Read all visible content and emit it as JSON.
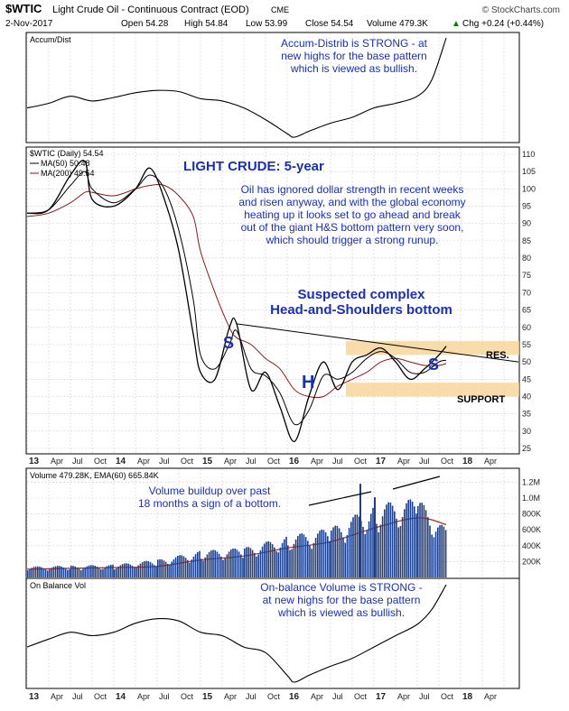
{
  "header": {
    "symbol": "$WTIC",
    "name": "Light Crude Oil - Continuous Contract (EOD)",
    "exchange": "CME",
    "date": "2-Nov-2017",
    "open": "Open 54.28",
    "high": "High 54.84",
    "low": "Low 53.99",
    "close": "Close 54.54",
    "volume": "Volume 479.3K",
    "change": "Chg +0.24 (+0.44%)",
    "change_arrow": "▲",
    "source": "© StockCharts.com"
  },
  "colors": {
    "price": "#000000",
    "ma50": "#000000",
    "ma200": "#8b1a1a",
    "volume_bar": "#1e3f8a",
    "volume_ema": "#b22222",
    "annotation_text": "#1a2fb4",
    "band_fill": "#f5d08f",
    "grid": "#cfcfcf"
  },
  "x_axis_labels": [
    "13",
    "Apr",
    "Jul",
    "Oct",
    "14",
    "Apr",
    "Jul",
    "Oct",
    "15",
    "Apr",
    "Jul",
    "Oct",
    "16",
    "Apr",
    "Jul",
    "Oct",
    "17",
    "Apr",
    "Jul",
    "Oct",
    "18",
    "Apr"
  ],
  "panels": {
    "accum": {
      "label": "Accum/Dist",
      "annotation": [
        "Accum-Distrib is STRONG - at",
        "new highs for the base pattern",
        "which is viewed as bullish."
      ]
    },
    "price": {
      "legend_title": "$WTIC (Daily) 54.54",
      "legend_ma50": "MA(50) 50.48",
      "legend_ma200": "MA(200) 49.54",
      "title": "LIGHT CRUDE: 5-year",
      "commentary": [
        "Oil has ignored dollar strength in recent weeks",
        "and risen anyway, and with the global economy",
        "heating up it looks set to go ahead and break",
        "out of the giant H&S bottom pattern very soon,",
        "which should trigger a strong runup."
      ],
      "pattern_label": [
        "Suspected complex",
        "Head-and-Shoulders bottom"
      ],
      "marker_s_left": "S",
      "marker_h": "H",
      "marker_s_right": "S",
      "res_label": "RES.",
      "support_label": "SUPPORT"
    },
    "volume": {
      "legend": "Volume 479.28K, EMA(60) 665.84K",
      "annotation": [
        "Volume buildup over past",
        "18 months a sign of a bottom."
      ]
    },
    "obv": {
      "label": "On Balance Vol",
      "annotation": [
        "On-balance Volume is STRONG -",
        "at new highs for the base pattern",
        "which is viewed as bullish."
      ]
    }
  },
  "chart_data": [
    {
      "type": "line",
      "name": "Accum/Dist",
      "x": [
        "2013-01",
        "2013-04",
        "2013-07",
        "2013-10",
        "2014-01",
        "2014-04",
        "2014-07",
        "2014-10",
        "2015-01",
        "2015-04",
        "2015-07",
        "2015-10",
        "2016-01",
        "2016-02",
        "2016-04",
        "2016-07",
        "2016-10",
        "2017-01",
        "2017-04",
        "2017-07",
        "2017-09",
        "2017-11"
      ],
      "series": [
        {
          "name": "Accum/Dist",
          "values": [
            40,
            44,
            50,
            46,
            49,
            53,
            55,
            54,
            48,
            46,
            40,
            30,
            18,
            15,
            20,
            27,
            32,
            40,
            44,
            50,
            64,
            100
          ]
        }
      ]
    },
    {
      "type": "line",
      "title": "LIGHT CRUDE: 5-year",
      "y_axis": {
        "min": 25,
        "max": 110,
        "ticks": [
          25,
          30,
          35,
          40,
          45,
          50,
          55,
          60,
          65,
          70,
          75,
          80,
          85,
          90,
          95,
          100,
          105,
          110
        ]
      },
      "x": [
        "2013-01",
        "2013-04",
        "2013-07",
        "2013-09",
        "2013-10",
        "2014-01",
        "2014-04",
        "2014-06",
        "2014-08",
        "2014-10",
        "2014-12",
        "2015-01",
        "2015-03",
        "2015-05",
        "2015-06",
        "2015-08",
        "2015-10",
        "2015-12",
        "2016-02",
        "2016-04",
        "2016-06",
        "2016-08",
        "2016-10",
        "2016-12",
        "2017-02",
        "2017-04",
        "2017-06",
        "2017-08",
        "2017-10",
        "2017-11"
      ],
      "series": [
        {
          "name": "$WTIC",
          "values": [
            93,
            94,
            104,
            108,
            97,
            95,
            100,
            106,
            97,
            82,
            58,
            47,
            45,
            60,
            61,
            42,
            47,
            37,
            27,
            40,
            50,
            42,
            50,
            52,
            54,
            50,
            45,
            48,
            52,
            54.54
          ]
        },
        {
          "name": "MA(50)",
          "values": [
            93,
            94,
            101,
            105,
            100,
            96,
            100,
            104,
            100,
            88,
            68,
            52,
            48,
            55,
            59,
            48,
            46,
            41,
            32,
            36,
            46,
            45,
            47,
            51,
            53,
            51,
            47,
            47,
            50,
            50.48
          ]
        },
        {
          "name": "MA(200)",
          "values": [
            92,
            93,
            96,
            99,
            99,
            98,
            100,
            101,
            101,
            98,
            92,
            82,
            70,
            60,
            57,
            55,
            51,
            48,
            42,
            40,
            40,
            43,
            45,
            47,
            50,
            51,
            50,
            49,
            49,
            49.54
          ]
        }
      ],
      "resistance_band": [
        52,
        56
      ],
      "support_band": [
        40,
        44
      ],
      "neckline": {
        "start": [
          "2015-06",
          61
        ],
        "end": [
          "2017-11",
          50
        ]
      }
    },
    {
      "type": "bar",
      "name": "Volume",
      "y_axis": {
        "ticks": [
          "200K",
          "400K",
          "600K",
          "800K",
          "1.0M",
          "1.2M"
        ]
      },
      "x": [
        "2013-01",
        "2013-07",
        "2014-01",
        "2014-07",
        "2015-01",
        "2015-07",
        "2016-01",
        "2016-07",
        "2017-01",
        "2017-07",
        "2017-11"
      ],
      "series": [
        {
          "name": "Volume",
          "values": [
            110,
            120,
            130,
            180,
            270,
            300,
            420,
            500,
            740,
            800,
            479.28
          ]
        },
        {
          "name": "EMA(60)",
          "values": [
            105,
            115,
            125,
            140,
            220,
            270,
            370,
            450,
            620,
            750,
            665.84
          ]
        }
      ]
    },
    {
      "type": "line",
      "name": "On Balance Vol",
      "x": [
        "2013-01",
        "2013-04",
        "2013-07",
        "2013-10",
        "2014-01",
        "2014-04",
        "2014-07",
        "2014-10",
        "2015-01",
        "2015-04",
        "2015-07",
        "2015-10",
        "2016-01",
        "2016-02",
        "2016-04",
        "2016-07",
        "2016-10",
        "2017-01",
        "2017-04",
        "2017-07",
        "2017-09",
        "2017-11"
      ],
      "series": [
        {
          "name": "On Balance Vol",
          "values": [
            45,
            52,
            58,
            55,
            58,
            66,
            70,
            68,
            58,
            55,
            45,
            40,
            20,
            14,
            20,
            28,
            35,
            45,
            55,
            65,
            78,
            100
          ]
        }
      ]
    }
  ]
}
